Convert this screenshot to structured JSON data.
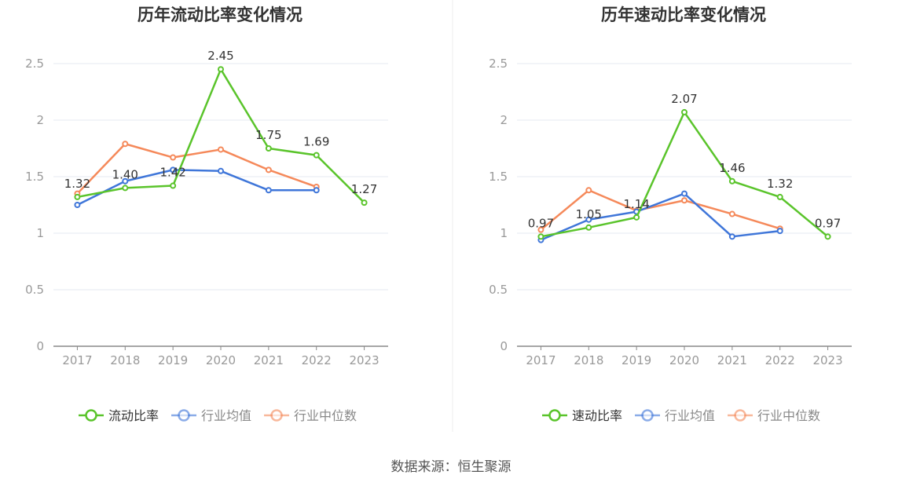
{
  "chart_data": [
    {
      "type": "line",
      "title": "历年流动比率变化情况",
      "categories": [
        "2017",
        "2018",
        "2019",
        "2020",
        "2021",
        "2022",
        "2023"
      ],
      "ylim": [
        0,
        2.5
      ],
      "yticks": [
        "0",
        "0.5",
        "1",
        "1.5",
        "2",
        "2.5"
      ],
      "grid": true,
      "legend_position": "bottom",
      "series": [
        {
          "name": "流动比率",
          "color": "#5ac42b",
          "values": [
            1.32,
            1.4,
            1.42,
            2.45,
            1.75,
            1.69,
            1.27
          ],
          "labels": [
            "1.32",
            "1.40",
            "1.42",
            "2.45",
            "1.75",
            "1.69",
            "1.27"
          ]
        },
        {
          "name": "行业均值",
          "color": "#3f76d9",
          "values": [
            1.25,
            1.46,
            1.56,
            1.55,
            1.38,
            1.38,
            null
          ]
        },
        {
          "name": "行业中位数",
          "color": "#f5895a",
          "values": [
            1.35,
            1.79,
            1.67,
            1.74,
            1.56,
            1.41,
            null
          ]
        }
      ]
    },
    {
      "type": "line",
      "title": "历年速动比率变化情况",
      "categories": [
        "2017",
        "2018",
        "2019",
        "2020",
        "2021",
        "2022",
        "2023"
      ],
      "ylim": [
        0,
        2.5
      ],
      "yticks": [
        "0",
        "0.5",
        "1",
        "1.5",
        "2",
        "2.5"
      ],
      "grid": true,
      "legend_position": "bottom",
      "series": [
        {
          "name": "速动比率",
          "color": "#5ac42b",
          "values": [
            0.97,
            1.05,
            1.14,
            2.07,
            1.46,
            1.32,
            0.97
          ],
          "labels": [
            "0.97",
            "1.05",
            "1.14",
            "2.07",
            "1.46",
            "1.32",
            "0.97"
          ]
        },
        {
          "name": "行业均值",
          "color": "#3f76d9",
          "values": [
            0.94,
            1.12,
            1.19,
            1.35,
            0.97,
            1.02,
            null
          ]
        },
        {
          "name": "行业中位数",
          "color": "#f5895a",
          "values": [
            1.03,
            1.38,
            1.2,
            1.29,
            1.17,
            1.04,
            null
          ]
        }
      ]
    }
  ],
  "footer": {
    "source": "数据来源：恒生聚源"
  }
}
